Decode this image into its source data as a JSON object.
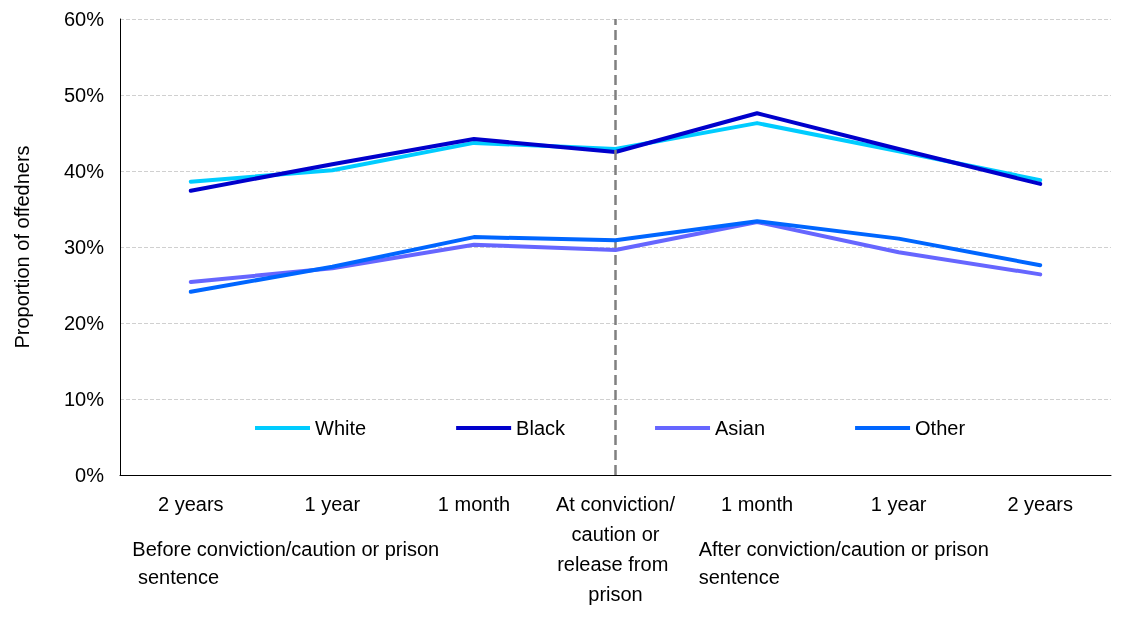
{
  "chart_data": {
    "type": "line",
    "ylabel": "Proportion of offedners",
    "categories": [
      "2 years",
      "1 year",
      "1 month",
      "At conviction/ caution or release from prison",
      "1 month",
      "1 year",
      "2 years"
    ],
    "series": [
      {
        "name": "White",
        "color": "#00ccff",
        "values": [
          38.6,
          40.1,
          43.7,
          42.9,
          46.3,
          42.6,
          38.8
        ]
      },
      {
        "name": "Black",
        "color": "#0000cc",
        "values": [
          37.4,
          40.9,
          44.2,
          42.5,
          47.6,
          42.9,
          38.3
        ]
      },
      {
        "name": "Asian",
        "color": "#6666ff",
        "values": [
          25.4,
          27.2,
          30.3,
          29.6,
          33.3,
          29.3,
          26.4
        ]
      },
      {
        "name": "Other",
        "color": "#0066ff",
        "values": [
          24.1,
          27.4,
          31.3,
          30.9,
          33.4,
          31.1,
          27.6
        ]
      }
    ],
    "ylim": [
      0,
      60
    ],
    "yticks": [
      {
        "value": 0,
        "label": "0%"
      },
      {
        "value": 10,
        "label": "10%"
      },
      {
        "value": 20,
        "label": "20%"
      },
      {
        "value": 30,
        "label": "30%"
      },
      {
        "value": 40,
        "label": "40%"
      },
      {
        "value": 50,
        "label": "50%"
      },
      {
        "value": 60,
        "label": "60%"
      }
    ],
    "grid": "y",
    "legend": "bottom",
    "marker": "none",
    "line_style": "solid",
    "ref_lines": [
      {
        "axis": "x",
        "value": "At conviction/ caution or release from prison",
        "color": "#808080",
        "line_style": "dashed"
      }
    ],
    "annotations": [
      "Before conviction/caution or prison sentence",
      "After conviction/caution or prison sentence"
    ]
  }
}
